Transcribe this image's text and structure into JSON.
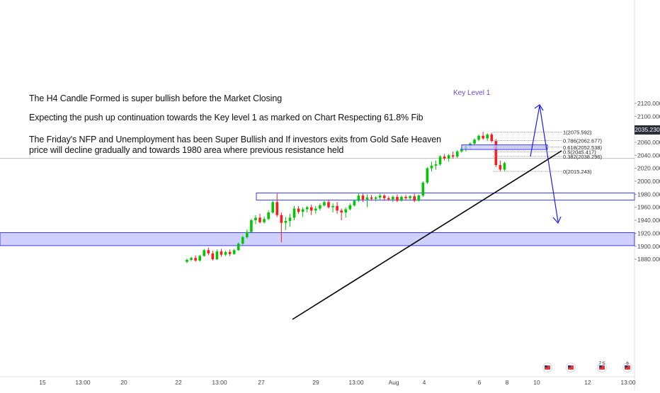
{
  "annotations": {
    "line1": "The H4 Candle Formed is super bullish before the Market Closing",
    "line2": "Expecting the push up continuation towards the Key level 1 as marked on Chart Respecting 61.8% Fib",
    "line3": "The Friday's NFP and Unemployment has been Super Bullish and If investors exits from Gold Safe Heaven",
    "line4": "price will decline gradually and towards 1980 area where previous resistance held"
  },
  "key_level_label": "Key Level 1",
  "current_price_label": "2035.230",
  "colors": {
    "bull": "#00c800",
    "bear": "#ff1a1a",
    "zone_fill": "#c8c8ff",
    "zone_border": "#3a3aff",
    "key_label": "#6a4bc4",
    "arrow": "#1a1aff",
    "trendline": "#000000",
    "fib_line": "#9e9e9e",
    "price_tag_bg": "#2a2e39"
  },
  "chart_data": {
    "type": "candlestick",
    "ylim": [
      1870,
      2125
    ],
    "y_ticks": [
      1880,
      1900,
      1920,
      1940,
      1960,
      1980,
      2000,
      2020,
      2040,
      2060,
      2080,
      2100,
      2120
    ],
    "y_tick_labels": [
      "1880.000",
      "1900.000",
      "1920.000",
      "1940.000",
      "1960.000",
      "1980.000",
      "2000.000",
      "2020.000",
      "2040.000",
      "2060.000",
      "2080.000",
      "2100.000",
      "2120.000"
    ],
    "x_tick_labels": [
      "15",
      "13:00",
      "20",
      "22",
      "13:00",
      "27",
      "29",
      "13:00",
      "Aug",
      "4",
      "6",
      "8",
      "10",
      "12",
      "13:00"
    ],
    "current_price": 2035.23,
    "candles": [
      [
        1876,
        1881,
        1874,
        1879
      ],
      [
        1879,
        1884,
        1877,
        1882
      ],
      [
        1882,
        1886,
        1876,
        1878
      ],
      [
        1878,
        1887,
        1876,
        1885
      ],
      [
        1885,
        1896,
        1884,
        1894
      ],
      [
        1894,
        1898,
        1886,
        1889
      ],
      [
        1889,
        1893,
        1878,
        1880
      ],
      [
        1880,
        1895,
        1879,
        1892
      ],
      [
        1892,
        1896,
        1884,
        1887
      ],
      [
        1887,
        1893,
        1885,
        1891
      ],
      [
        1891,
        1895,
        1885,
        1888
      ],
      [
        1888,
        1896,
        1887,
        1894
      ],
      [
        1894,
        1906,
        1893,
        1904
      ],
      [
        1904,
        1916,
        1902,
        1914
      ],
      [
        1914,
        1926,
        1912,
        1922
      ],
      [
        1922,
        1942,
        1920,
        1940
      ],
      [
        1940,
        1948,
        1934,
        1944
      ],
      [
        1944,
        1950,
        1935,
        1937
      ],
      [
        1937,
        1946,
        1935,
        1942
      ],
      [
        1942,
        1955,
        1940,
        1952
      ],
      [
        1952,
        1970,
        1950,
        1968
      ],
      [
        1968,
        1981,
        1945,
        1948
      ],
      [
        1948,
        1952,
        1906,
        1936
      ],
      [
        1936,
        1945,
        1925,
        1939
      ],
      [
        1939,
        1950,
        1930,
        1944
      ],
      [
        1944,
        1962,
        1940,
        1958
      ],
      [
        1958,
        1962,
        1950,
        1953
      ],
      [
        1953,
        1960,
        1945,
        1957
      ],
      [
        1957,
        1962,
        1952,
        1960
      ],
      [
        1960,
        1964,
        1948,
        1955
      ],
      [
        1955,
        1962,
        1950,
        1958
      ],
      [
        1958,
        1966,
        1955,
        1963
      ],
      [
        1963,
        1970,
        1961,
        1968
      ],
      [
        1968,
        1972,
        1958,
        1960
      ],
      [
        1960,
        1966,
        1952,
        1962
      ],
      [
        1962,
        1968,
        1950,
        1955
      ],
      [
        1955,
        1958,
        1940,
        1952
      ],
      [
        1952,
        1960,
        1944,
        1957
      ],
      [
        1957,
        1966,
        1955,
        1963
      ],
      [
        1963,
        1972,
        1961,
        1970
      ],
      [
        1970,
        1982,
        1968,
        1978
      ],
      [
        1978,
        1981,
        1968,
        1972
      ],
      [
        1972,
        1980,
        1960,
        1975
      ],
      [
        1975,
        1979,
        1970,
        1973
      ],
      [
        1973,
        1977,
        1969,
        1975
      ],
      [
        1975,
        1981,
        1971,
        1978
      ],
      [
        1978,
        1980,
        1970,
        1974
      ],
      [
        1974,
        1977,
        1970,
        1972
      ],
      [
        1972,
        1978,
        1968,
        1976
      ],
      [
        1976,
        1980,
        1968,
        1970
      ],
      [
        1970,
        1978,
        1969,
        1976
      ],
      [
        1976,
        1979,
        1971,
        1974
      ],
      [
        1974,
        1979,
        1970,
        1977
      ],
      [
        1977,
        1981,
        1968,
        1970
      ],
      [
        1970,
        1980,
        1969,
        1978
      ],
      [
        1978,
        2000,
        1976,
        1998
      ],
      [
        1998,
        2022,
        1996,
        2020
      ],
      [
        2020,
        2030,
        2015,
        2024
      ],
      [
        2024,
        2032,
        2018,
        2026
      ],
      [
        2026,
        2040,
        2024,
        2038
      ],
      [
        2038,
        2042,
        2032,
        2035
      ],
      [
        2035,
        2042,
        2030,
        2040
      ],
      [
        2040,
        2046,
        2035,
        2038
      ],
      [
        2038,
        2048,
        2036,
        2046
      ],
      [
        2046,
        2052,
        2044,
        2050
      ],
      [
        2050,
        2056,
        2046,
        2054
      ],
      [
        2054,
        2060,
        2050,
        2058
      ],
      [
        2058,
        2066,
        2056,
        2064
      ],
      [
        2064,
        2072,
        2062,
        2070
      ],
      [
        2070,
        2076,
        2064,
        2066
      ],
      [
        2066,
        2074,
        2062,
        2072
      ],
      [
        2072,
        2075,
        2060,
        2062
      ],
      [
        2062,
        2065,
        2022,
        2025
      ],
      [
        2025,
        2032,
        2015,
        2018
      ],
      [
        2018,
        2030,
        2016,
        2028
      ]
    ],
    "zones": [
      {
        "low": 1901,
        "high": 1921
      },
      {
        "low": 1971,
        "high": 1982
      },
      {
        "low": 2049,
        "high": 2056
      }
    ],
    "fib_levels": [
      {
        "label": "1(2075.592)",
        "value": 2075.592
      },
      {
        "label": "0.786(2062.677)",
        "value": 2062.677
      },
      {
        "label": "0.618(2052.538)",
        "value": 2052.538
      },
      {
        "label": "0.5(2045.417)",
        "value": 2045.417
      },
      {
        "label": "0.382(2038.296)",
        "value": 2038.296
      },
      {
        "label": "0(2015.243)",
        "value": 2015.243
      }
    ]
  },
  "event_markers": {
    "marker1": "●",
    "marker2": "●",
    "marker3": "●",
    "marker3_text": "7 5",
    "marker4": "●",
    "marker4_text": "6"
  }
}
